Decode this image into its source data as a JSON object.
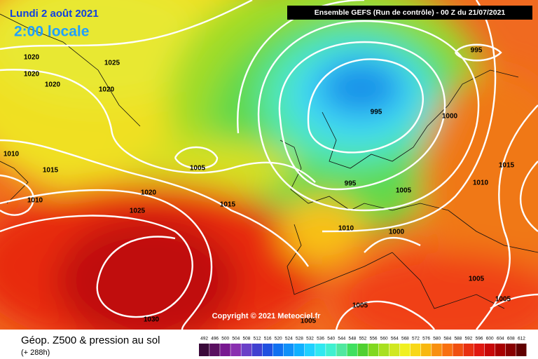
{
  "header": {
    "title": "Lundi 2 août 2021",
    "time": "2:00 locale",
    "model": "Ensemble GEFS  (Run de contrôle)  -  00 Z du 21/07/2021",
    "copyright": "Copyright © 2021 Meteociel.fr"
  },
  "isobar_labels": [
    1020,
    1025,
    1020,
    1020,
    1020,
    1010,
    1015,
    1005,
    1010,
    1020,
    1025,
    1015,
    995,
    995,
    1000,
    995,
    1005,
    1015,
    1010,
    1010,
    1000,
    1005,
    1005,
    1005,
    1005,
    1030
  ],
  "legend": {
    "title": "Géop. Z500 & pression au sol",
    "lead": "(+ 288h)",
    "scale": [
      492,
      496,
      500,
      504,
      508,
      512,
      516,
      520,
      524,
      528,
      532,
      536,
      540,
      544,
      548,
      552,
      556,
      560,
      564,
      568,
      572,
      576,
      580,
      584,
      588,
      592,
      596,
      600,
      604,
      608,
      612
    ],
    "colors": [
      "#3a0a3a",
      "#5a1060",
      "#781890",
      "#8a30b0",
      "#6a40c8",
      "#4040d0",
      "#2050e0",
      "#1070f0",
      "#1090f8",
      "#10b0ff",
      "#20d0ff",
      "#30e8f0",
      "#40f0d0",
      "#50e8a0",
      "#40e060",
      "#50d030",
      "#80d820",
      "#a8e020",
      "#d0e820",
      "#f0f020",
      "#f8d818",
      "#f8b810",
      "#f89010",
      "#f87010",
      "#f05010",
      "#e83010",
      "#e01810",
      "#c80808",
      "#a80000",
      "#880000",
      "#600000"
    ]
  }
}
